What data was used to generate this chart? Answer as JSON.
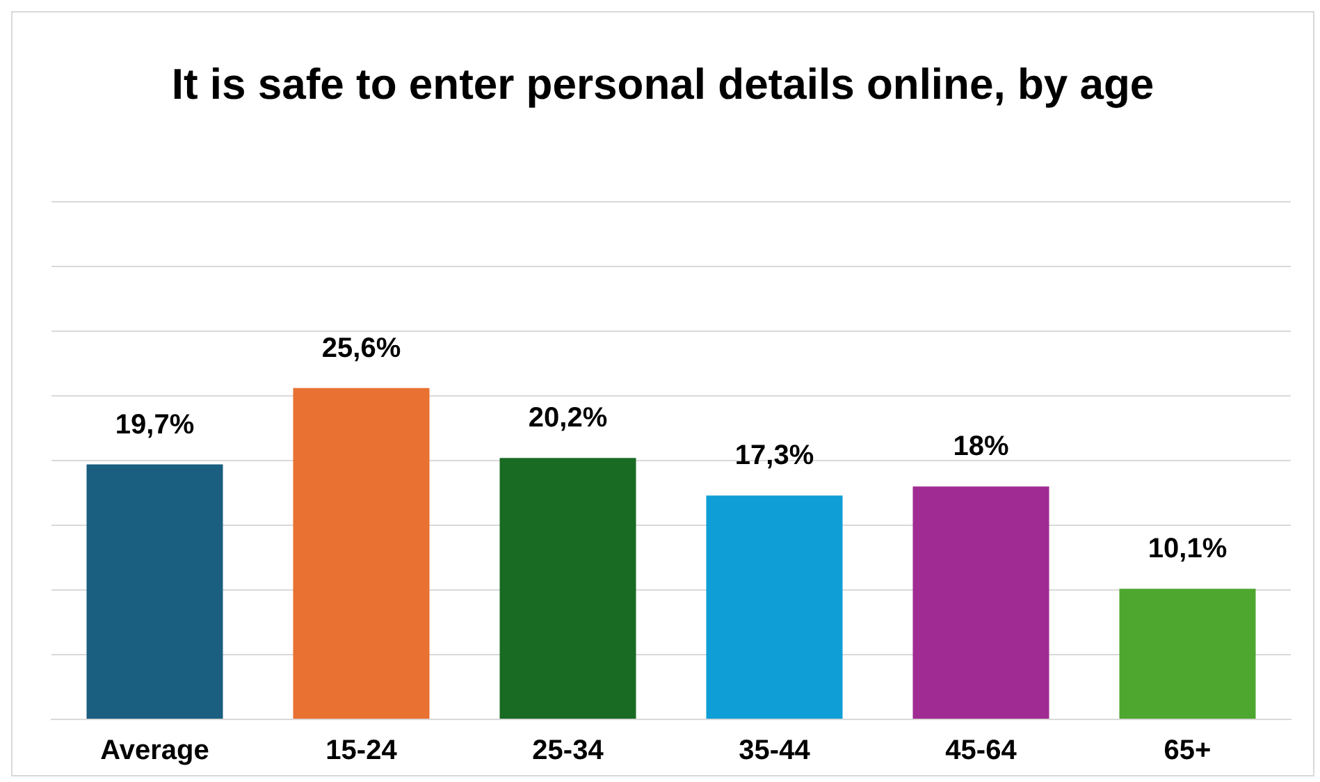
{
  "chart_data": {
    "type": "bar",
    "title": "It is safe to enter personal details online, by age",
    "categories": [
      "Average",
      "15-24",
      "25-34",
      "35-44",
      "45-64",
      "65+"
    ],
    "values": [
      19.7,
      25.6,
      20.2,
      17.3,
      18,
      10.1
    ],
    "value_labels": [
      "19,7%",
      "25,6%",
      "20,2%",
      "17,3%",
      "18%",
      "10,1%"
    ],
    "colors": [
      "#1a5e80",
      "#e97132",
      "#196b24",
      "#0f9ed5",
      "#a02b93",
      "#4ea72e"
    ],
    "ylim": [
      0,
      40
    ],
    "yticks": [
      {
        "value": 0,
        "label": null
      },
      {
        "value": 5,
        "label": null
      },
      {
        "value": 10,
        "label": null
      },
      {
        "value": 15,
        "label": null
      },
      {
        "value": 20,
        "label": null
      },
      {
        "value": 25,
        "label": null
      },
      {
        "value": 30,
        "label": null
      },
      {
        "value": 35,
        "label": null
      },
      {
        "value": 40,
        "label": null
      }
    ],
    "tick_labels": "x",
    "grid": "y",
    "legend": false
  }
}
